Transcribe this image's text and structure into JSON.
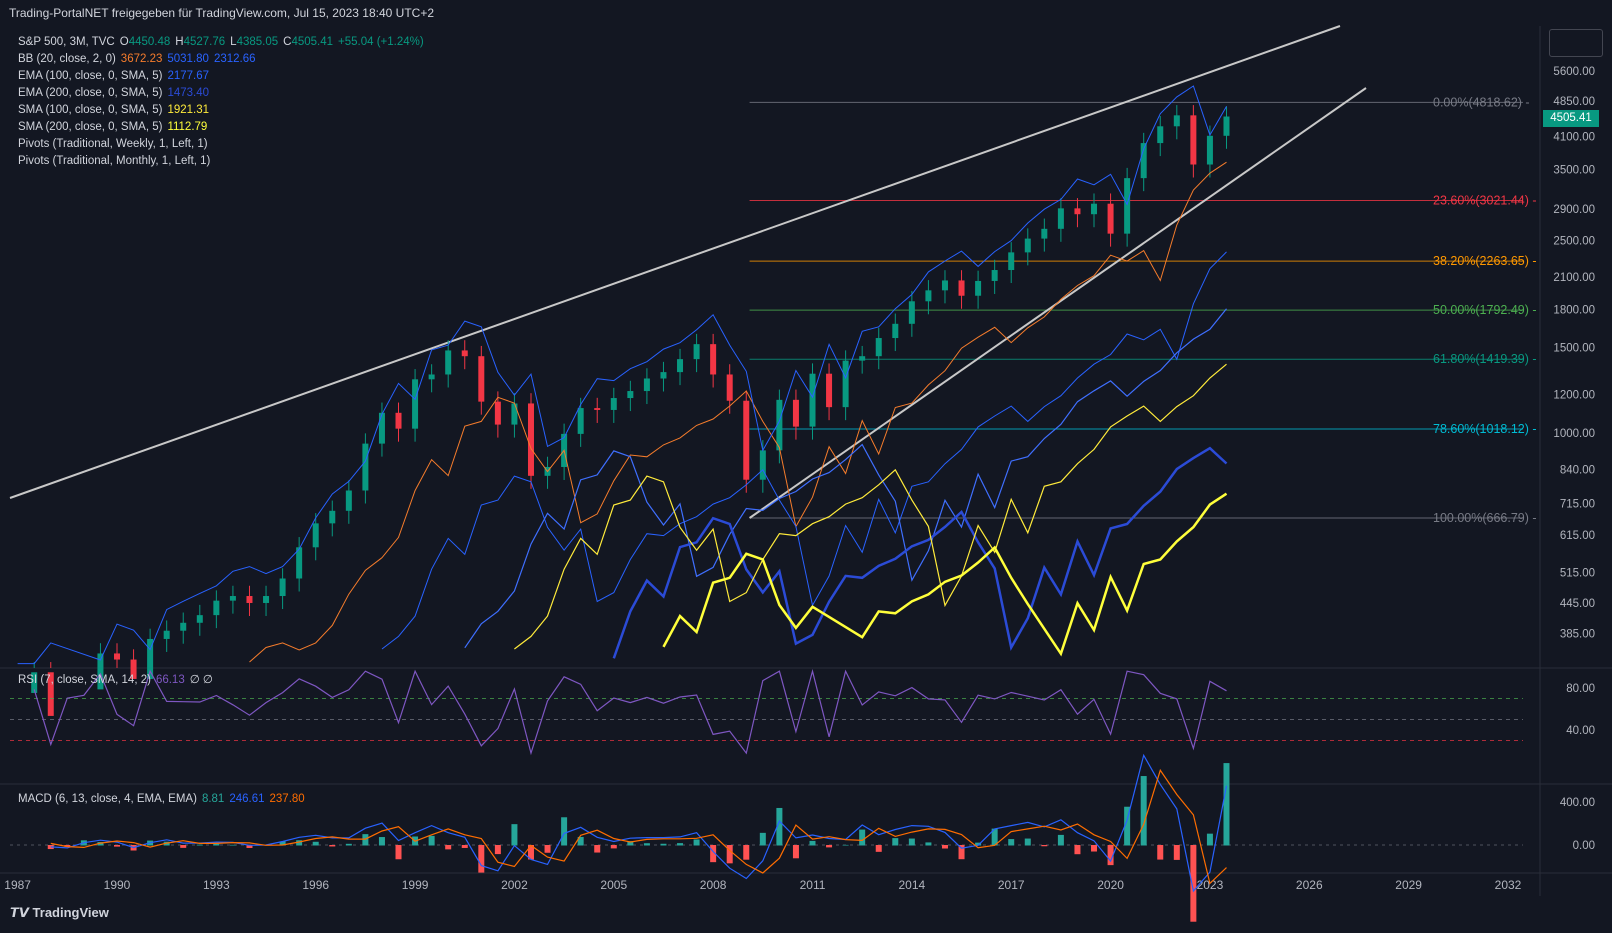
{
  "header": {
    "text": "Trading-PortalNET freigegeben für TradingView.com, Jul 15, 2023 18:40 UTC+2"
  },
  "legend": {
    "main": {
      "name": "S&P 500, 3M, TVC",
      "o_label": "O",
      "o": "4450.48",
      "h_label": "H",
      "h": "4527.76",
      "l_label": "L",
      "l": "4385.05",
      "c_label": "C",
      "c": "4505.41",
      "chg": "+55.04 (+1.24%)"
    },
    "rows": [
      {
        "name": "BB (20, close, 2, 0)",
        "values": [
          "3672.23",
          "5031.80",
          "2312.66"
        ],
        "colors": [
          "#f57c2c",
          "#2962ff",
          "#2962ff"
        ]
      },
      {
        "name": "EMA (100, close, 0, SMA, 5)",
        "values": [
          "2177.67"
        ],
        "colors": [
          "#2962ff"
        ]
      },
      {
        "name": "EMA (200, close, 0, SMA, 5)",
        "values": [
          "1473.40"
        ],
        "colors": [
          "#2b4bd6"
        ]
      },
      {
        "name": "SMA (100, close, 0, SMA, 5)",
        "values": [
          "1921.31"
        ],
        "colors": [
          "#ffeb3b"
        ]
      },
      {
        "name": "SMA (200, close, 0, SMA, 5)",
        "values": [
          "1112.79"
        ],
        "colors": [
          "#ffff3b"
        ]
      },
      {
        "name": "Pivots (Traditional, Weekly, 1, Left, 1)",
        "values": [],
        "colors": []
      },
      {
        "name": "Pivots (Traditional, Monthly, 1, Left, 1)",
        "values": [],
        "colors": []
      }
    ]
  },
  "rsi_legend": {
    "name": "RSI (7, close, SMA, 14, 2)",
    "value": "66.13",
    "extra": "∅ ∅"
  },
  "macd_legend": {
    "name": "MACD (6, 13, close, 4, EMA, EMA)",
    "values": [
      "8.81",
      "246.61",
      "237.80"
    ]
  },
  "last_price": "4505.41",
  "footer": {
    "brand": "TradingView"
  },
  "colors": {
    "up": "#089981",
    "down": "#f23645",
    "bg": "#131722",
    "grid": "#1e222d"
  },
  "chart_data": {
    "type": "candlestick",
    "symbol": "S&P 500",
    "interval": "3M",
    "x_ticks": [
      "1987",
      "1990",
      "1993",
      "1996",
      "1999",
      "2002",
      "2005",
      "2008",
      "2011",
      "2014",
      "2017",
      "2020",
      "2023",
      "2026",
      "2029",
      "2032"
    ],
    "y_scale": "log",
    "y_ticks": [
      "5600.00",
      "4850.00",
      "4100.00",
      "3500.00",
      "2900.00",
      "2500.00",
      "2100.00",
      "1800.00",
      "1500.00",
      "1200.00",
      "1000.00",
      "840.00",
      "715.00",
      "615.00",
      "515.00",
      "445.00",
      "385.00"
    ],
    "fib_levels": [
      {
        "label": "0.00%(4818.62)",
        "value": 4818.62,
        "color": "#787b86"
      },
      {
        "label": "23.60%(3021.44)",
        "value": 3021.44,
        "color": "#f23645"
      },
      {
        "label": "38.20%(2263.65)",
        "value": 2263.65,
        "color": "#ff9800"
      },
      {
        "label": "50.00%(1792.49)",
        "value": 1792.49,
        "color": "#4caf50"
      },
      {
        "label": "61.80%(1419.39)",
        "value": 1419.39,
        "color": "#089981"
      },
      {
        "label": "78.60%(1018.12)",
        "value": 1018.12,
        "color": "#00bcd4"
      },
      {
        "label": "100.00%(666.79)",
        "value": 666.79,
        "color": "#787b86"
      }
    ],
    "quarterly_close_approx": [
      [
        1987.0,
        290
      ],
      [
        1987.5,
        320
      ],
      [
        1988.0,
        260
      ],
      [
        1988.5,
        275
      ],
      [
        1989.0,
        295
      ],
      [
        1989.5,
        350
      ],
      [
        1990.0,
        340
      ],
      [
        1990.5,
        310
      ],
      [
        1991.0,
        375
      ],
      [
        1991.5,
        390
      ],
      [
        1992.0,
        405
      ],
      [
        1992.5,
        420
      ],
      [
        1993.0,
        450
      ],
      [
        1993.5,
        460
      ],
      [
        1994.0,
        445
      ],
      [
        1994.5,
        460
      ],
      [
        1995.0,
        500
      ],
      [
        1995.5,
        580
      ],
      [
        1996.0,
        650
      ],
      [
        1996.5,
        690
      ],
      [
        1997.0,
        760
      ],
      [
        1997.5,
        950
      ],
      [
        1998.0,
        1100
      ],
      [
        1998.5,
        1020
      ],
      [
        1999.0,
        1290
      ],
      [
        1999.5,
        1320
      ],
      [
        2000.0,
        1480
      ],
      [
        2000.5,
        1440
      ],
      [
        2001.0,
        1160
      ],
      [
        2001.5,
        1040
      ],
      [
        2002.0,
        1150
      ],
      [
        2002.5,
        815
      ],
      [
        2003.0,
        850
      ],
      [
        2003.5,
        995
      ],
      [
        2004.0,
        1125
      ],
      [
        2004.5,
        1115
      ],
      [
        2005.0,
        1180
      ],
      [
        2005.5,
        1220
      ],
      [
        2006.0,
        1295
      ],
      [
        2006.5,
        1335
      ],
      [
        2007.0,
        1420
      ],
      [
        2007.5,
        1525
      ],
      [
        2008.0,
        1320
      ],
      [
        2008.5,
        1165
      ],
      [
        2009.0,
        800
      ],
      [
        2009.5,
        920
      ],
      [
        2010.0,
        1170
      ],
      [
        2010.5,
        1030
      ],
      [
        2011.0,
        1325
      ],
      [
        2011.5,
        1130
      ],
      [
        2012.0,
        1410
      ],
      [
        2012.5,
        1440
      ],
      [
        2013.0,
        1570
      ],
      [
        2013.5,
        1680
      ],
      [
        2014.0,
        1870
      ],
      [
        2014.5,
        1970
      ],
      [
        2015.0,
        2065
      ],
      [
        2015.5,
        1920
      ],
      [
        2016.0,
        2060
      ],
      [
        2016.5,
        2170
      ],
      [
        2017.0,
        2360
      ],
      [
        2017.5,
        2520
      ],
      [
        2018.0,
        2640
      ],
      [
        2018.5,
        2910
      ],
      [
        2019.0,
        2830
      ],
      [
        2019.5,
        2975
      ],
      [
        2020.0,
        2580
      ],
      [
        2020.5,
        3360
      ],
      [
        2021.0,
        3970
      ],
      [
        2021.5,
        4300
      ],
      [
        2022.0,
        4530
      ],
      [
        2022.5,
        3585
      ],
      [
        2023.0,
        4110
      ],
      [
        2023.5,
        4505
      ]
    ],
    "rsi": {
      "ticks": [
        "80.00",
        "40.00"
      ],
      "last": 66.13
    },
    "macd": {
      "ticks": [
        "400.00",
        "0.00"
      ],
      "macd": 246.61,
      "signal": 237.8,
      "hist": 8.81
    }
  }
}
